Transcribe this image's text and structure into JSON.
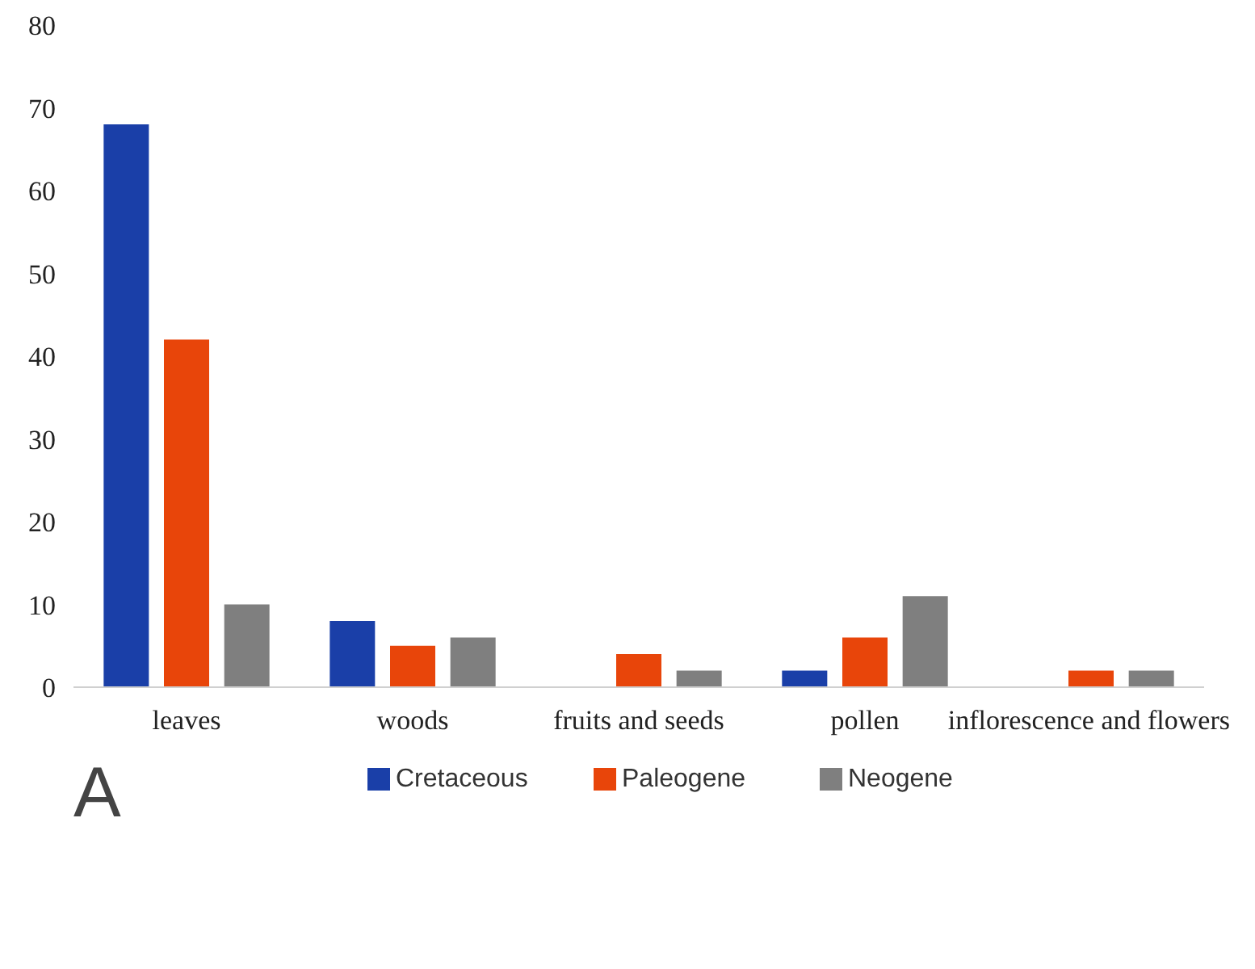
{
  "chart_data": {
    "type": "bar",
    "categories": [
      "leaves",
      "woods",
      "fruits and seeds",
      "pollen",
      "inflorescence and flowers"
    ],
    "series": [
      {
        "name": "Cretaceous",
        "color": "#1a3fa8",
        "values": [
          68,
          8,
          0,
          2,
          0
        ]
      },
      {
        "name": "Paleogene",
        "color": "#e8450a",
        "values": [
          42,
          5,
          4,
          6,
          2
        ]
      },
      {
        "name": "Neogene",
        "color": "#7f7f7f",
        "values": [
          10,
          6,
          2,
          11,
          2
        ]
      }
    ],
    "ylim": [
      0,
      80
    ],
    "yticks": [
      0,
      10,
      20,
      30,
      40,
      50,
      60,
      70,
      80
    ],
    "grid": false,
    "legend": "bottom",
    "annotations": [
      "A"
    ]
  }
}
